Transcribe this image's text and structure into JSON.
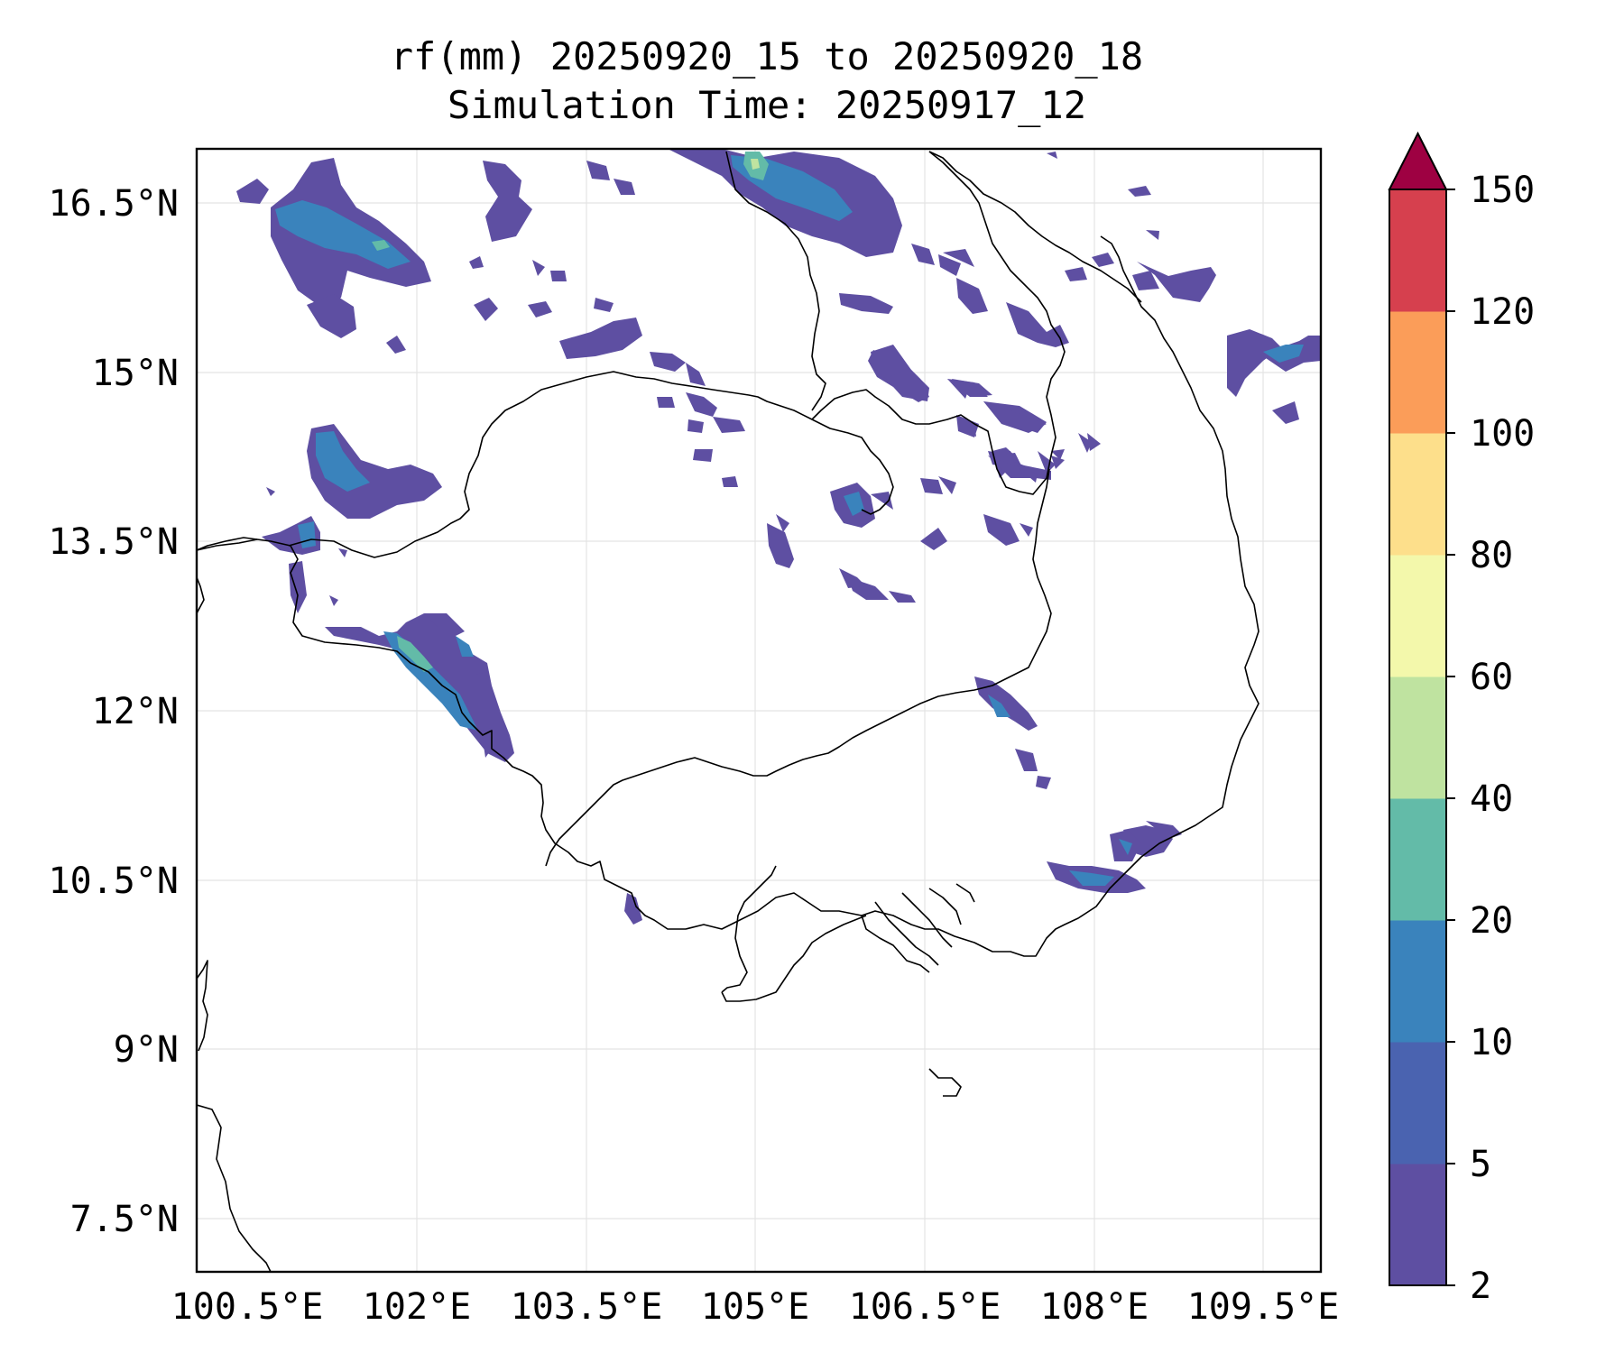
{
  "title": {
    "line1": "rf(mm) 20250920_15 to 20250920_18",
    "line2": "Simulation Time: 20250917_12"
  },
  "map": {
    "lon_ticks": [
      "100.5°E",
      "102°E",
      "103.5°E",
      "105°E",
      "106.5°E",
      "108°E",
      "109.5°E"
    ],
    "lat_ticks": [
      "16.5°N",
      "15°N",
      "13.5°N",
      "12°N",
      "10.5°N",
      "9°N",
      "7.5°N"
    ],
    "gridlines": true
  },
  "colorbar": {
    "levels": [
      "2",
      "5",
      "10",
      "20",
      "40",
      "60",
      "80",
      "100",
      "120",
      "150"
    ],
    "colors": [
      "#5e4fa2",
      "#4a63b0",
      "#3a83bc",
      "#63bba8",
      "#bfe3a0",
      "#f3f8ab",
      "#fddf8b",
      "#fb9d59",
      "#d6404e",
      "#9e0142"
    ],
    "extend": "max"
  }
}
